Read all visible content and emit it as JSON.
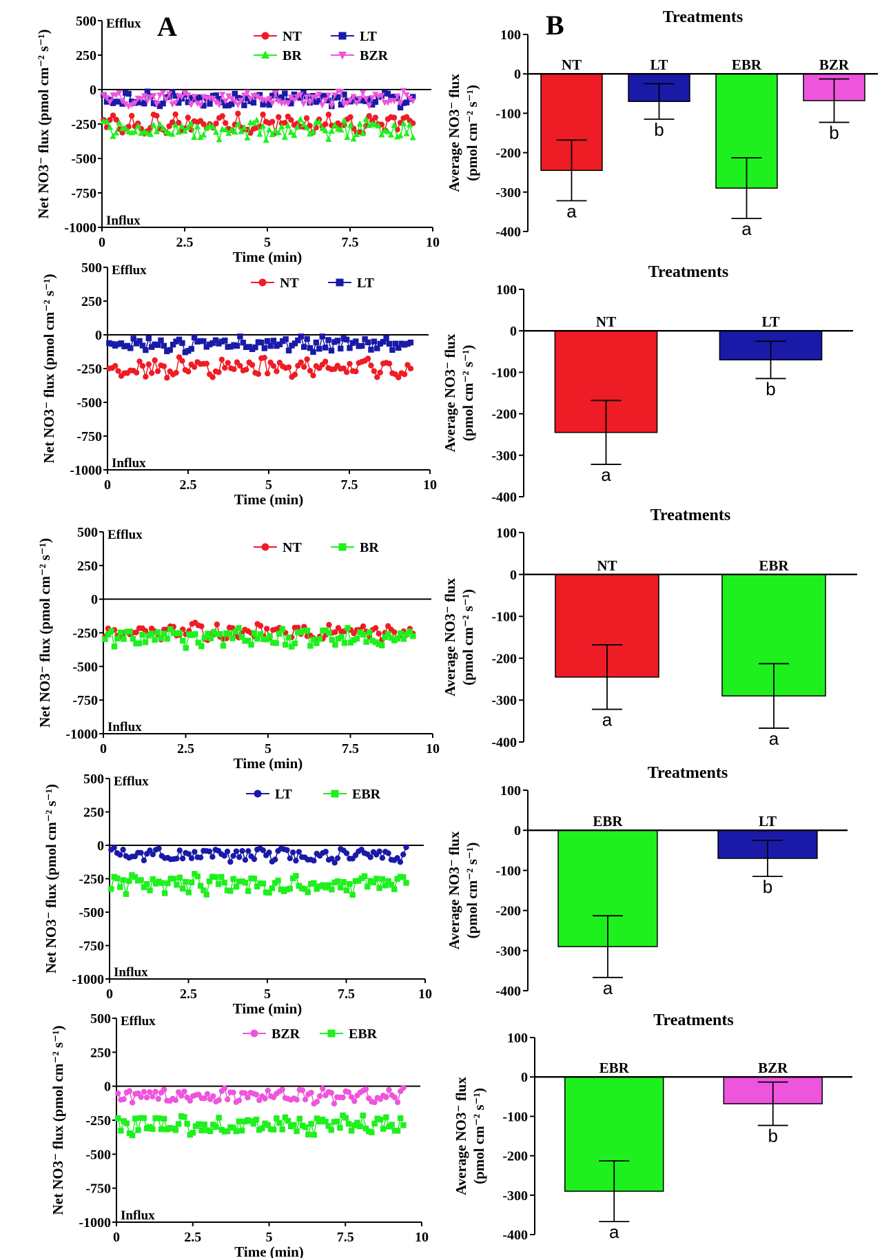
{
  "panel_labels": {
    "A": "A",
    "B": "B"
  },
  "colors": {
    "NT": "#ee1c25",
    "LT": "#1a1aa8",
    "BR": "#1ef01e",
    "BZR": "#ee55dd"
  },
  "flux_labels": {
    "efflux": "Efflux",
    "influx": "Influx"
  },
  "chart_data": [
    {
      "type": "line",
      "panel": "A1",
      "xlabel": "Time (min)",
      "ylabel": "Net NO3⁻ flux (pmol cm⁻² s⁻¹)",
      "xlim": [
        0,
        10
      ],
      "ylim": [
        -1000,
        500
      ],
      "xticks": [
        "0",
        "2.5",
        "5",
        "7.5",
        "10"
      ],
      "yticks": [
        "500",
        "250",
        "0",
        "-250",
        "-500",
        "-750",
        "-1000"
      ],
      "series": [
        {
          "name": "NT",
          "color": "#ee1c25",
          "marker": "circle",
          "mean": -245,
          "amp": 60
        },
        {
          "name": "LT",
          "color": "#1a1aa8",
          "marker": "square",
          "mean": -70,
          "amp": 45
        },
        {
          "name": "BR",
          "color": "#1ef01e",
          "marker": "triangle",
          "mean": -290,
          "amp": 60
        },
        {
          "name": "BZR",
          "color": "#ee55dd",
          "marker": "tridown",
          "mean": -68,
          "amp": 45
        }
      ]
    },
    {
      "type": "bar",
      "panel": "B1",
      "title": "Treatments",
      "ylabel": "Average NO3⁻ flux (pmol cm⁻² s⁻¹)",
      "ylim": [
        -400,
        100
      ],
      "yticks": [
        "100",
        "0",
        "-100",
        "-200",
        "-300",
        "-400"
      ],
      "categories": [
        "NT",
        "LT",
        "EBR",
        "BZR"
      ],
      "values": [
        -245,
        -70,
        -290,
        -68
      ],
      "errors": [
        77,
        45,
        77,
        55
      ],
      "letters": [
        "a",
        "b",
        "a",
        "b"
      ],
      "colors": [
        "#ee1c25",
        "#1a1aa8",
        "#1ef01e",
        "#ee55dd"
      ]
    },
    {
      "type": "line",
      "panel": "A2",
      "xlabel": "Time (min)",
      "ylabel": "Net NO3⁻ flux (pmol cm⁻² s⁻¹)",
      "xlim": [
        0,
        10
      ],
      "ylim": [
        -1000,
        500
      ],
      "xticks": [
        "0",
        "2.5",
        "5",
        "7.5",
        "10"
      ],
      "yticks": [
        "500",
        "250",
        "0",
        "-250",
        "-500",
        "-750",
        "-1000"
      ],
      "series": [
        {
          "name": "NT",
          "color": "#ee1c25",
          "marker": "circle",
          "mean": -245,
          "amp": 60
        },
        {
          "name": "LT",
          "color": "#1a1aa8",
          "marker": "square",
          "mean": -70,
          "amp": 45
        }
      ]
    },
    {
      "type": "bar",
      "panel": "B2",
      "title": "Treatments",
      "ylabel": "Average NO3⁻ flux (pmol cm⁻² s⁻¹)",
      "ylim": [
        -400,
        100
      ],
      "yticks": [
        "100",
        "0",
        "-100",
        "-200",
        "-300",
        "-400"
      ],
      "categories": [
        "NT",
        "LT"
      ],
      "values": [
        -245,
        -70
      ],
      "errors": [
        77,
        45
      ],
      "letters": [
        "a",
        "b"
      ],
      "colors": [
        "#ee1c25",
        "#1a1aa8"
      ]
    },
    {
      "type": "line",
      "panel": "A3",
      "xlabel": "Time (min)",
      "ylabel": "Net NO3⁻ flux (pmol cm⁻² s⁻¹)",
      "xlim": [
        0,
        10
      ],
      "ylim": [
        -1000,
        500
      ],
      "xticks": [
        "0",
        "2.5",
        "5",
        "7.5",
        "10"
      ],
      "yticks": [
        "500",
        "250",
        "0",
        "-250",
        "-500",
        "-750",
        "-1000"
      ],
      "series": [
        {
          "name": "NT",
          "color": "#ee1c25",
          "marker": "circle",
          "mean": -245,
          "amp": 60
        },
        {
          "name": "BR",
          "color": "#1ef01e",
          "marker": "square",
          "mean": -290,
          "amp": 60
        }
      ]
    },
    {
      "type": "bar",
      "panel": "B3",
      "title": "Treatments",
      "ylabel": "Average NO3⁻ flux (pmol cm⁻² s⁻¹)",
      "ylim": [
        -400,
        100
      ],
      "yticks": [
        "100",
        "0",
        "-100",
        "-200",
        "-300",
        "-400"
      ],
      "categories": [
        "NT",
        "EBR"
      ],
      "values": [
        -245,
        -290
      ],
      "errors": [
        77,
        77
      ],
      "letters": [
        "a",
        "a"
      ],
      "colors": [
        "#ee1c25",
        "#1ef01e"
      ]
    },
    {
      "type": "line",
      "panel": "A4",
      "xlabel": "Time (min)",
      "ylabel": "Net NO3⁻ flux (pmol cm⁻² s⁻¹)",
      "xlim": [
        0,
        10
      ],
      "ylim": [
        -1000,
        500
      ],
      "xticks": [
        "0",
        "2.5",
        "5",
        "7.5",
        "10"
      ],
      "yticks": [
        "500",
        "250",
        "0",
        "-250",
        "-500",
        "-750",
        "-1000"
      ],
      "series": [
        {
          "name": "LT",
          "color": "#1a1aa8",
          "marker": "circle",
          "mean": -70,
          "amp": 45
        },
        {
          "name": "EBR",
          "color": "#1ef01e",
          "marker": "square",
          "mean": -290,
          "amp": 60
        }
      ]
    },
    {
      "type": "bar",
      "panel": "B4",
      "title": "Treatments",
      "ylabel": "Average NO3⁻ flux (pmol cm⁻² s⁻¹)",
      "ylim": [
        -400,
        100
      ],
      "yticks": [
        "100",
        "0",
        "-100",
        "-200",
        "-300",
        "-400"
      ],
      "categories": [
        "EBR",
        "LT"
      ],
      "values": [
        -290,
        -70
      ],
      "errors": [
        77,
        45
      ],
      "letters": [
        "a",
        "b"
      ],
      "colors": [
        "#1ef01e",
        "#1a1aa8"
      ]
    },
    {
      "type": "line",
      "panel": "A5",
      "xlabel": "Time (min)",
      "ylabel": "Net NO3⁻ flux (pmol cm⁻² s⁻¹)",
      "xlim": [
        0,
        10
      ],
      "ylim": [
        -1000,
        500
      ],
      "xticks": [
        "0",
        "2.5",
        "5",
        "7.5",
        "10"
      ],
      "yticks": [
        "500",
        "250",
        "0",
        "-250",
        "-500",
        "-750",
        "-1000"
      ],
      "series": [
        {
          "name": "BZR",
          "color": "#ee55dd",
          "marker": "circle",
          "mean": -68,
          "amp": 45
        },
        {
          "name": "EBR",
          "color": "#1ef01e",
          "marker": "square",
          "mean": -290,
          "amp": 60
        }
      ]
    },
    {
      "type": "bar",
      "panel": "B5",
      "title": "Treatments",
      "ylabel": "Average NO3⁻ flux (pmol cm⁻² s⁻¹)",
      "ylim": [
        -400,
        100
      ],
      "yticks": [
        "100",
        "0",
        "-100",
        "-200",
        "-300",
        "-400"
      ],
      "categories": [
        "EBR",
        "BZR"
      ],
      "values": [
        -290,
        -68
      ],
      "errors": [
        77,
        55
      ],
      "letters": [
        "a",
        "b"
      ],
      "colors": [
        "#1ef01e",
        "#ee55dd"
      ]
    }
  ]
}
